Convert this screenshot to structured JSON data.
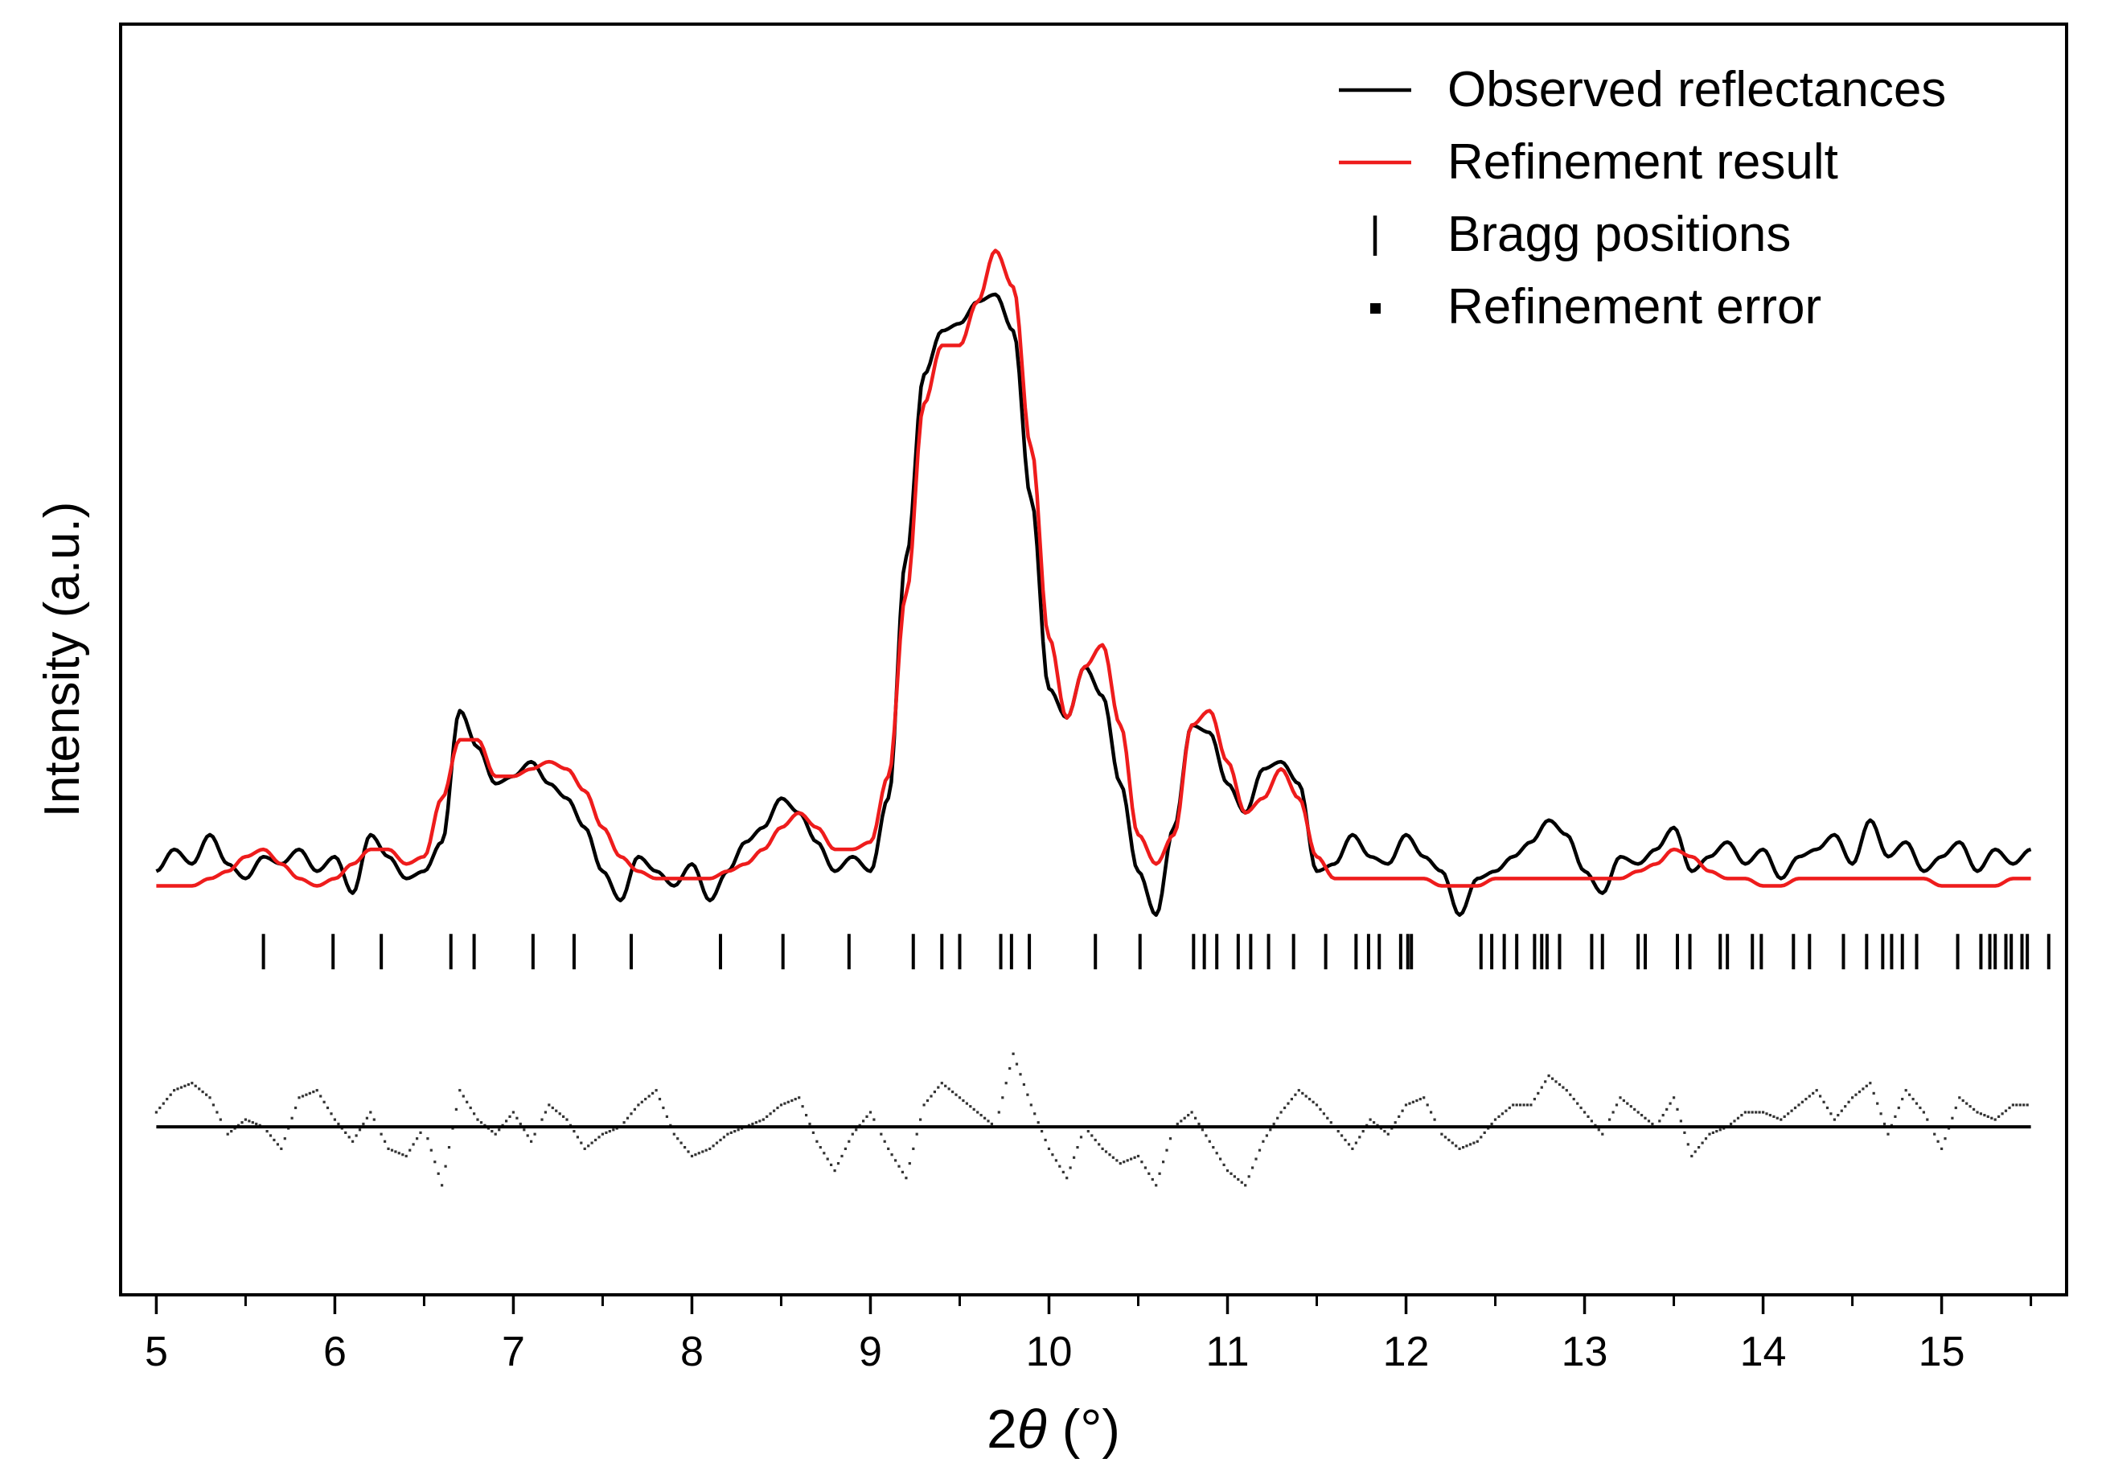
{
  "chart_data": {
    "type": "line",
    "title": "",
    "xlabel_prefix": "2",
    "xlabel_symbol": "θ",
    "xlabel_suffix": " (°)",
    "ylabel": "Intensity (a.u.)",
    "xlim": [
      4.8,
      15.7
    ],
    "ylim": [
      -0.56,
      1.18
    ],
    "xticks": [
      5,
      6,
      7,
      8,
      9,
      10,
      11,
      12,
      13,
      14,
      15
    ],
    "xtick_labels": [
      "5",
      "6",
      "7",
      "8",
      "9",
      "10",
      "11",
      "12",
      "13",
      "14",
      "15"
    ],
    "minor_xtick_step": 0.5,
    "y_ticks_shown": false,
    "legend": {
      "placement": "top-right",
      "entries": [
        {
          "label": "Observed reflectances",
          "symbol": "line",
          "color": "#000000"
        },
        {
          "label": "Refinement result",
          "symbol": "line",
          "color": "#ee1c1c"
        },
        {
          "label": "Bragg positions",
          "symbol": "vbar",
          "color": "#000000"
        },
        {
          "label": "Refinement error",
          "symbol": "square",
          "color": "#000000"
        }
      ]
    },
    "series": [
      {
        "name": "Observed reflectances",
        "color": "#000000",
        "style": "line",
        "x": [
          5.0,
          5.1,
          5.2,
          5.3,
          5.4,
          5.5,
          5.6,
          5.7,
          5.8,
          5.9,
          6.0,
          6.1,
          6.2,
          6.3,
          6.4,
          6.5,
          6.6,
          6.7,
          6.8,
          6.9,
          7.0,
          7.1,
          7.2,
          7.3,
          7.4,
          7.5,
          7.6,
          7.7,
          7.8,
          7.9,
          8.0,
          8.1,
          8.2,
          8.3,
          8.4,
          8.5,
          8.6,
          8.7,
          8.8,
          8.9,
          9.0,
          9.1,
          9.2,
          9.3,
          9.4,
          9.5,
          9.6,
          9.7,
          9.8,
          9.9,
          10.0,
          10.1,
          10.2,
          10.3,
          10.4,
          10.5,
          10.6,
          10.7,
          10.8,
          10.9,
          11.0,
          11.1,
          11.2,
          11.3,
          11.4,
          11.5,
          11.6,
          11.7,
          11.8,
          11.9,
          12.0,
          12.1,
          12.2,
          12.3,
          12.4,
          12.5,
          12.6,
          12.7,
          12.8,
          12.9,
          13.0,
          13.1,
          13.2,
          13.3,
          13.4,
          13.5,
          13.6,
          13.7,
          13.8,
          13.9,
          14.0,
          14.1,
          14.2,
          14.3,
          14.4,
          14.5,
          14.6,
          14.7,
          14.8,
          14.9,
          15.0,
          15.1,
          15.2,
          15.3,
          15.4,
          15.5
        ],
        "y": [
          0.02,
          0.05,
          0.03,
          0.07,
          0.03,
          0.01,
          0.04,
          0.03,
          0.05,
          0.02,
          0.04,
          -0.01,
          0.07,
          0.04,
          0.01,
          0.02,
          0.06,
          0.24,
          0.19,
          0.14,
          0.15,
          0.17,
          0.14,
          0.12,
          0.08,
          0.02,
          -0.02,
          0.04,
          0.02,
          0.0,
          0.03,
          -0.02,
          0.02,
          0.06,
          0.08,
          0.12,
          0.1,
          0.06,
          0.02,
          0.04,
          0.02,
          0.12,
          0.45,
          0.7,
          0.76,
          0.77,
          0.8,
          0.81,
          0.76,
          0.53,
          0.27,
          0.23,
          0.3,
          0.26,
          0.14,
          0.02,
          -0.04,
          0.08,
          0.22,
          0.21,
          0.14,
          0.1,
          0.16,
          0.17,
          0.14,
          0.02,
          0.03,
          0.07,
          0.04,
          0.03,
          0.07,
          0.04,
          0.02,
          -0.04,
          0.01,
          0.02,
          0.04,
          0.06,
          0.09,
          0.07,
          0.02,
          -0.01,
          0.04,
          0.03,
          0.05,
          0.08,
          0.02,
          0.04,
          0.06,
          0.03,
          0.05,
          0.01,
          0.04,
          0.05,
          0.07,
          0.03,
          0.09,
          0.04,
          0.06,
          0.02,
          0.04,
          0.06,
          0.02,
          0.05,
          0.03,
          0.05
        ]
      },
      {
        "name": "Refinement result",
        "color": "#ee1c1c",
        "style": "line",
        "x": [
          5.0,
          5.1,
          5.2,
          5.3,
          5.4,
          5.5,
          5.6,
          5.7,
          5.8,
          5.9,
          6.0,
          6.1,
          6.2,
          6.3,
          6.4,
          6.5,
          6.6,
          6.7,
          6.8,
          6.9,
          7.0,
          7.1,
          7.2,
          7.3,
          7.4,
          7.5,
          7.6,
          7.7,
          7.8,
          7.9,
          8.0,
          8.1,
          8.2,
          8.3,
          8.4,
          8.5,
          8.6,
          8.7,
          8.8,
          8.9,
          9.0,
          9.1,
          9.2,
          9.3,
          9.4,
          9.5,
          9.6,
          9.7,
          9.8,
          9.9,
          10.0,
          10.1,
          10.2,
          10.3,
          10.4,
          10.5,
          10.6,
          10.7,
          10.8,
          10.9,
          11.0,
          11.1,
          11.2,
          11.3,
          11.4,
          11.5,
          11.6,
          11.7,
          11.8,
          11.9,
          12.0,
          12.1,
          12.2,
          12.3,
          12.4,
          12.5,
          12.6,
          12.7,
          12.8,
          12.9,
          13.0,
          13.1,
          13.2,
          13.3,
          13.4,
          13.5,
          13.6,
          13.7,
          13.8,
          13.9,
          14.0,
          14.1,
          14.2,
          14.3,
          14.4,
          14.5,
          14.6,
          14.7,
          14.8,
          14.9,
          15.0,
          15.1,
          15.2,
          15.3,
          15.4,
          15.5
        ],
        "y": [
          0.0,
          0.0,
          0.0,
          0.01,
          0.02,
          0.04,
          0.05,
          0.03,
          0.01,
          0.0,
          0.01,
          0.03,
          0.05,
          0.05,
          0.03,
          0.04,
          0.12,
          0.2,
          0.2,
          0.15,
          0.15,
          0.16,
          0.17,
          0.16,
          0.13,
          0.08,
          0.04,
          0.02,
          0.01,
          0.01,
          0.01,
          0.01,
          0.02,
          0.03,
          0.05,
          0.08,
          0.1,
          0.08,
          0.05,
          0.05,
          0.06,
          0.15,
          0.4,
          0.66,
          0.74,
          0.74,
          0.8,
          0.87,
          0.82,
          0.6,
          0.34,
          0.23,
          0.3,
          0.33,
          0.22,
          0.07,
          0.03,
          0.07,
          0.22,
          0.24,
          0.17,
          0.1,
          0.12,
          0.16,
          0.12,
          0.04,
          0.01,
          0.01,
          0.01,
          0.01,
          0.01,
          0.01,
          0.0,
          0.0,
          0.0,
          0.01,
          0.01,
          0.01,
          0.01,
          0.01,
          0.01,
          0.01,
          0.01,
          0.02,
          0.03,
          0.05,
          0.04,
          0.02,
          0.01,
          0.01,
          0.0,
          0.0,
          0.01,
          0.01,
          0.01,
          0.01,
          0.01,
          0.01,
          0.01,
          0.01,
          0.0,
          0.0,
          0.0,
          0.0,
          0.01,
          0.01
        ]
      },
      {
        "name": "Bragg positions",
        "color": "#000000",
        "style": "vbar",
        "y_level": -0.09,
        "x": [
          5.6,
          5.99,
          6.26,
          6.65,
          6.78,
          7.11,
          7.34,
          7.66,
          8.16,
          8.51,
          8.88,
          9.24,
          9.4,
          9.5,
          9.73,
          9.79,
          9.89,
          10.26,
          10.51,
          10.81,
          10.87,
          10.94,
          11.06,
          11.13,
          11.23,
          11.37,
          11.55,
          11.72,
          11.79,
          11.85,
          11.97,
          12.01,
          12.03,
          12.42,
          12.48,
          12.55,
          12.62,
          12.72,
          12.76,
          12.79,
          12.86,
          13.04,
          13.1,
          13.3,
          13.34,
          13.52,
          13.59,
          13.76,
          13.8,
          13.94,
          13.99,
          14.17,
          14.26,
          14.45,
          14.58,
          14.67,
          14.72,
          14.78,
          14.86,
          15.09,
          15.22,
          15.27,
          15.3,
          15.36,
          15.39,
          15.45,
          15.48,
          15.6
        ]
      },
      {
        "name": "Refinement error",
        "color": "#000000",
        "style": "dotted",
        "baseline": -0.33,
        "x": [
          5.0,
          5.1,
          5.2,
          5.3,
          5.4,
          5.5,
          5.6,
          5.7,
          5.8,
          5.9,
          6.0,
          6.1,
          6.2,
          6.3,
          6.4,
          6.5,
          6.6,
          6.7,
          6.8,
          6.9,
          7.0,
          7.1,
          7.2,
          7.3,
          7.4,
          7.5,
          7.6,
          7.7,
          7.8,
          7.9,
          8.0,
          8.1,
          8.2,
          8.3,
          8.4,
          8.5,
          8.6,
          8.7,
          8.8,
          8.9,
          9.0,
          9.1,
          9.2,
          9.3,
          9.4,
          9.5,
          9.6,
          9.7,
          9.8,
          9.9,
          10.0,
          10.1,
          10.2,
          10.3,
          10.4,
          10.5,
          10.6,
          10.7,
          10.8,
          10.9,
          11.0,
          11.1,
          11.2,
          11.3,
          11.4,
          11.5,
          11.6,
          11.7,
          11.8,
          11.9,
          12.0,
          12.1,
          12.2,
          12.3,
          12.4,
          12.5,
          12.6,
          12.7,
          12.8,
          12.9,
          13.0,
          13.1,
          13.2,
          13.3,
          13.4,
          13.5,
          13.6,
          13.7,
          13.8,
          13.9,
          14.0,
          14.1,
          14.2,
          14.3,
          14.4,
          14.5,
          14.6,
          14.7,
          14.8,
          14.9,
          15.0,
          15.1,
          15.2,
          15.3,
          15.4,
          15.5
        ],
        "y": [
          -0.31,
          -0.28,
          -0.27,
          -0.29,
          -0.34,
          -0.32,
          -0.33,
          -0.36,
          -0.29,
          -0.28,
          -0.32,
          -0.35,
          -0.31,
          -0.36,
          -0.37,
          -0.33,
          -0.41,
          -0.28,
          -0.32,
          -0.34,
          -0.31,
          -0.35,
          -0.3,
          -0.32,
          -0.36,
          -0.34,
          -0.33,
          -0.3,
          -0.28,
          -0.34,
          -0.37,
          -0.36,
          -0.34,
          -0.33,
          -0.32,
          -0.3,
          -0.29,
          -0.35,
          -0.39,
          -0.34,
          -0.31,
          -0.36,
          -0.4,
          -0.3,
          -0.27,
          -0.29,
          -0.31,
          -0.33,
          -0.23,
          -0.3,
          -0.36,
          -0.4,
          -0.33,
          -0.36,
          -0.38,
          -0.37,
          -0.41,
          -0.33,
          -0.31,
          -0.35,
          -0.39,
          -0.41,
          -0.35,
          -0.31,
          -0.28,
          -0.3,
          -0.33,
          -0.36,
          -0.32,
          -0.34,
          -0.3,
          -0.29,
          -0.34,
          -0.36,
          -0.35,
          -0.32,
          -0.3,
          -0.3,
          -0.26,
          -0.28,
          -0.31,
          -0.34,
          -0.29,
          -0.31,
          -0.33,
          -0.29,
          -0.37,
          -0.34,
          -0.33,
          -0.31,
          -0.31,
          -0.32,
          -0.3,
          -0.28,
          -0.32,
          -0.29,
          -0.27,
          -0.34,
          -0.28,
          -0.31,
          -0.36,
          -0.29,
          -0.31,
          -0.32,
          -0.3,
          -0.3
        ]
      }
    ]
  }
}
